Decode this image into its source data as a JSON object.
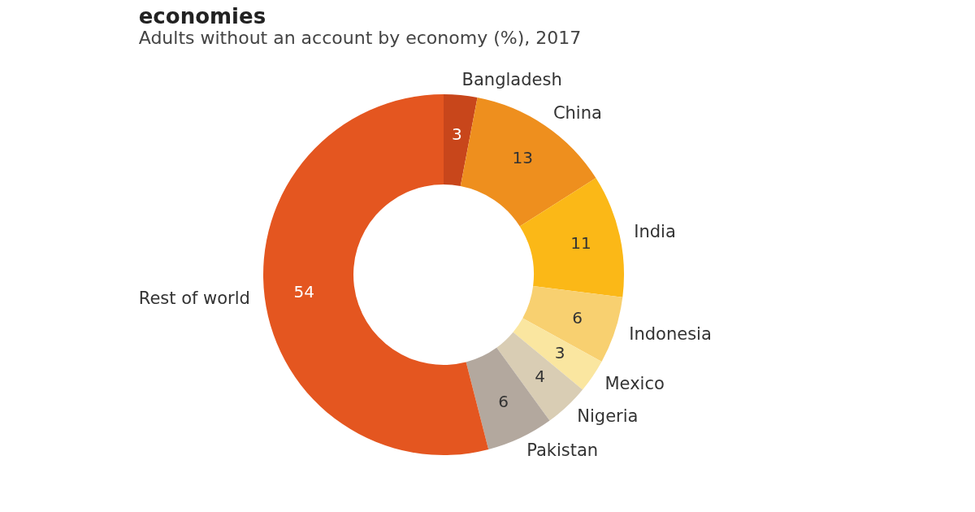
{
  "chart_data": {
    "type": "donut",
    "title": "economies",
    "subtitle": "Adults without an account by economy (%), 2017",
    "categories": [
      "Bangladesh",
      "China",
      "India",
      "Indonesia",
      "Mexico",
      "Nigeria",
      "Pakistan",
      "Rest of world"
    ],
    "values": [
      3,
      13,
      11,
      6,
      3,
      4,
      6,
      54
    ],
    "colors": [
      "#c8461b",
      "#ee8f1e",
      "#fbb817",
      "#f8d070",
      "#fae6a0",
      "#d9cdb4",
      "#b3a89e",
      "#e45620"
    ],
    "data_labels": true,
    "legend": false
  }
}
